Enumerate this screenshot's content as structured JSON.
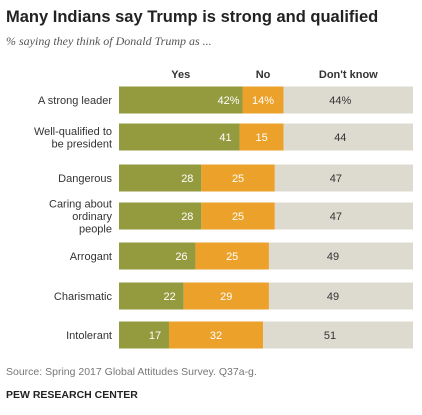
{
  "title": "Many Indians say Trump is strong and qualified",
  "subtitle": "% saying they think of Donald Trump as ...",
  "source": "Source: Spring 2017 Global Attitudes Survey. Q37a-g.",
  "org": "PEW RESEARCH CENTER",
  "colors": {
    "yes": "#949b3f",
    "no": "#eba12a",
    "dontknow": "#dddbd0"
  },
  "chart_data": {
    "type": "bar",
    "stacked": true,
    "orientation": "horizontal",
    "series_names": [
      "Yes",
      "No",
      "Don't know"
    ],
    "rows": [
      {
        "label": [
          "A strong leader"
        ],
        "values": [
          42,
          14,
          44
        ],
        "labels": [
          "42%",
          "14%",
          "44%"
        ]
      },
      {
        "label": [
          "Well-qualified to",
          "be president"
        ],
        "values": [
          41,
          15,
          44
        ],
        "labels": [
          "41",
          "15",
          "44"
        ]
      },
      {
        "label": [
          "Dangerous"
        ],
        "values": [
          28,
          25,
          47
        ],
        "labels": [
          "28",
          "25",
          "47"
        ]
      },
      {
        "label": [
          "Caring about",
          "ordinary",
          "people"
        ],
        "values": [
          28,
          25,
          47
        ],
        "labels": [
          "28",
          "25",
          "47"
        ]
      },
      {
        "label": [
          "Arrogant"
        ],
        "values": [
          26,
          25,
          49
        ],
        "labels": [
          "26",
          "25",
          "49"
        ]
      },
      {
        "label": [
          "Charismatic"
        ],
        "values": [
          22,
          29,
          49
        ],
        "labels": [
          "22",
          "29",
          "49"
        ]
      },
      {
        "label": [
          "Intolerant"
        ],
        "values": [
          17,
          32,
          51
        ],
        "labels": [
          "17",
          "32",
          "51"
        ]
      }
    ]
  }
}
